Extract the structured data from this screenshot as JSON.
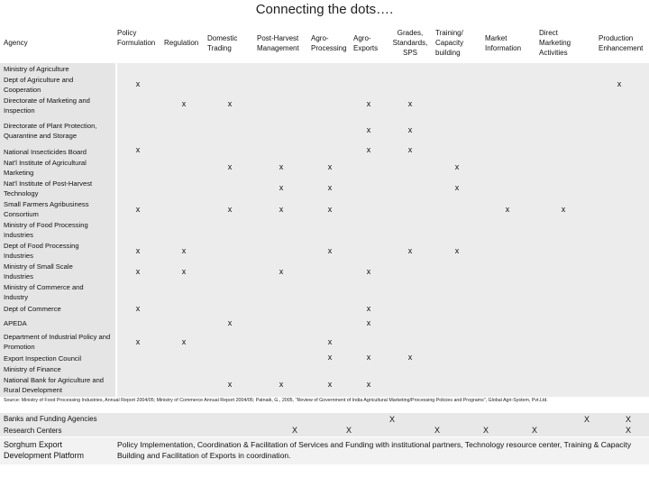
{
  "title": "Connecting the dots….",
  "headers": {
    "agency": "Agency",
    "policy": "Policy Formulation",
    "regulation": "Regulation",
    "domestic": "Domestic Trading",
    "postharvest": "Post-Harvest Management",
    "agroproc": "Agro-Processing",
    "agroexp": "Agro-Exports",
    "grades": "Grades, Standards, SPS",
    "training": "Training/ Capacity building",
    "market": "Market Information",
    "direct": "Direct Marketing Activities",
    "production": "Production Enhancement"
  },
  "agencies": [
    "Ministry of Agriculture",
    "Dept of Agriculture and Cooperation",
    "Directorate of Marketing and Inspection",
    "Directorate of Plant Protection, Quarantine and Storage",
    "National Insecticides Board",
    "Nat'l Institute of Agricultural Marketing",
    "Nat'l Institute of Post-Harvest Technology",
    "Small Farmers Agribusiness Consortium",
    "Ministry of Food Processing Industries",
    "Dept of Food Processing Industries",
    "Ministry of Small Scale Industries",
    "Ministry of Commerce and Industry",
    "Dept of Commerce",
    "APEDA",
    "Department of Industrial Policy and Promotion",
    "Export Inspection Council",
    "Ministry of Finance",
    "National Bank for Agriculture and Rural Development"
  ],
  "mark": "x",
  "mark_upper": "X",
  "source": "Source: Ministry of Food Processing Industries, Annual Report 2004/05; Ministry of Commerce Annual Report 2004/05; Patnaik, G., 2005, \"Review of Government of India Agricultural Marketing/Processing Policies and Programs\", Global Agri-System, Pvt.Ltd.",
  "banks_label": "Banks and Funding Agencies",
  "research_label": "Research Centers",
  "sorghum_label": "Sorghum Export Development Platform",
  "sorghum_text": "Policy Implementation, Coordination & Facilitation of Services and Funding with institutional partners, Technology resource center, Training & Capacity Building and Facilitation of Exports in coordination."
}
